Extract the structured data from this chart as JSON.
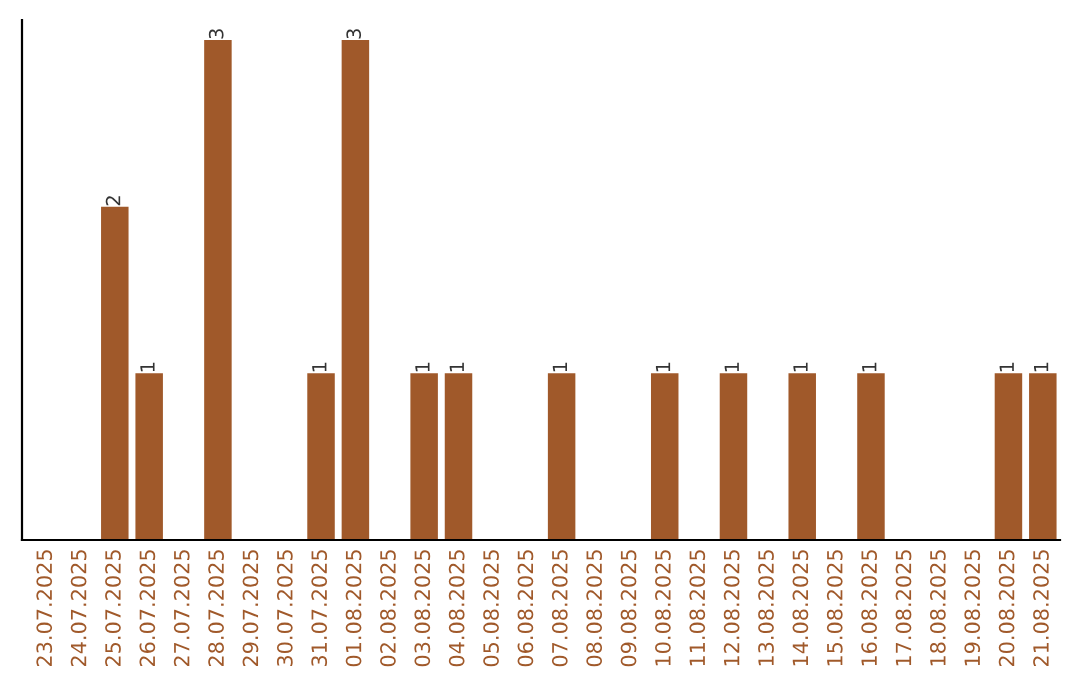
{
  "chart_data": {
    "type": "bar",
    "categories": [
      "23.07.2025",
      "24.07.2025",
      "25.07.2025",
      "26.07.2025",
      "27.07.2025",
      "28.07.2025",
      "29.07.2025",
      "30.07.2025",
      "31.07.2025",
      "01.08.2025",
      "02.08.2025",
      "03.08.2025",
      "04.08.2025",
      "05.08.2025",
      "06.08.2025",
      "07.08.2025",
      "08.08.2025",
      "09.08.2025",
      "10.08.2025",
      "11.08.2025",
      "12.08.2025",
      "13.08.2025",
      "14.08.2025",
      "15.08.2025",
      "16.08.2025",
      "17.08.2025",
      "18.08.2025",
      "19.08.2025",
      "20.08.2025",
      "21.08.2025"
    ],
    "values": [
      0,
      0,
      2,
      1,
      0,
      3,
      0,
      0,
      1,
      3,
      0,
      1,
      1,
      0,
      0,
      1,
      0,
      0,
      1,
      0,
      1,
      0,
      1,
      0,
      1,
      0,
      0,
      0,
      1,
      1
    ],
    "value_labels": [
      null,
      null,
      "2",
      "1",
      null,
      "3",
      null,
      null,
      "1",
      "3",
      null,
      "1",
      "1",
      null,
      null,
      "1",
      null,
      null,
      "1",
      null,
      "1",
      null,
      "1",
      null,
      "1",
      null,
      null,
      null,
      "1",
      "1"
    ],
    "color": "#a0592a",
    "tick_labels": "x",
    "grid": false,
    "legend": false
  }
}
